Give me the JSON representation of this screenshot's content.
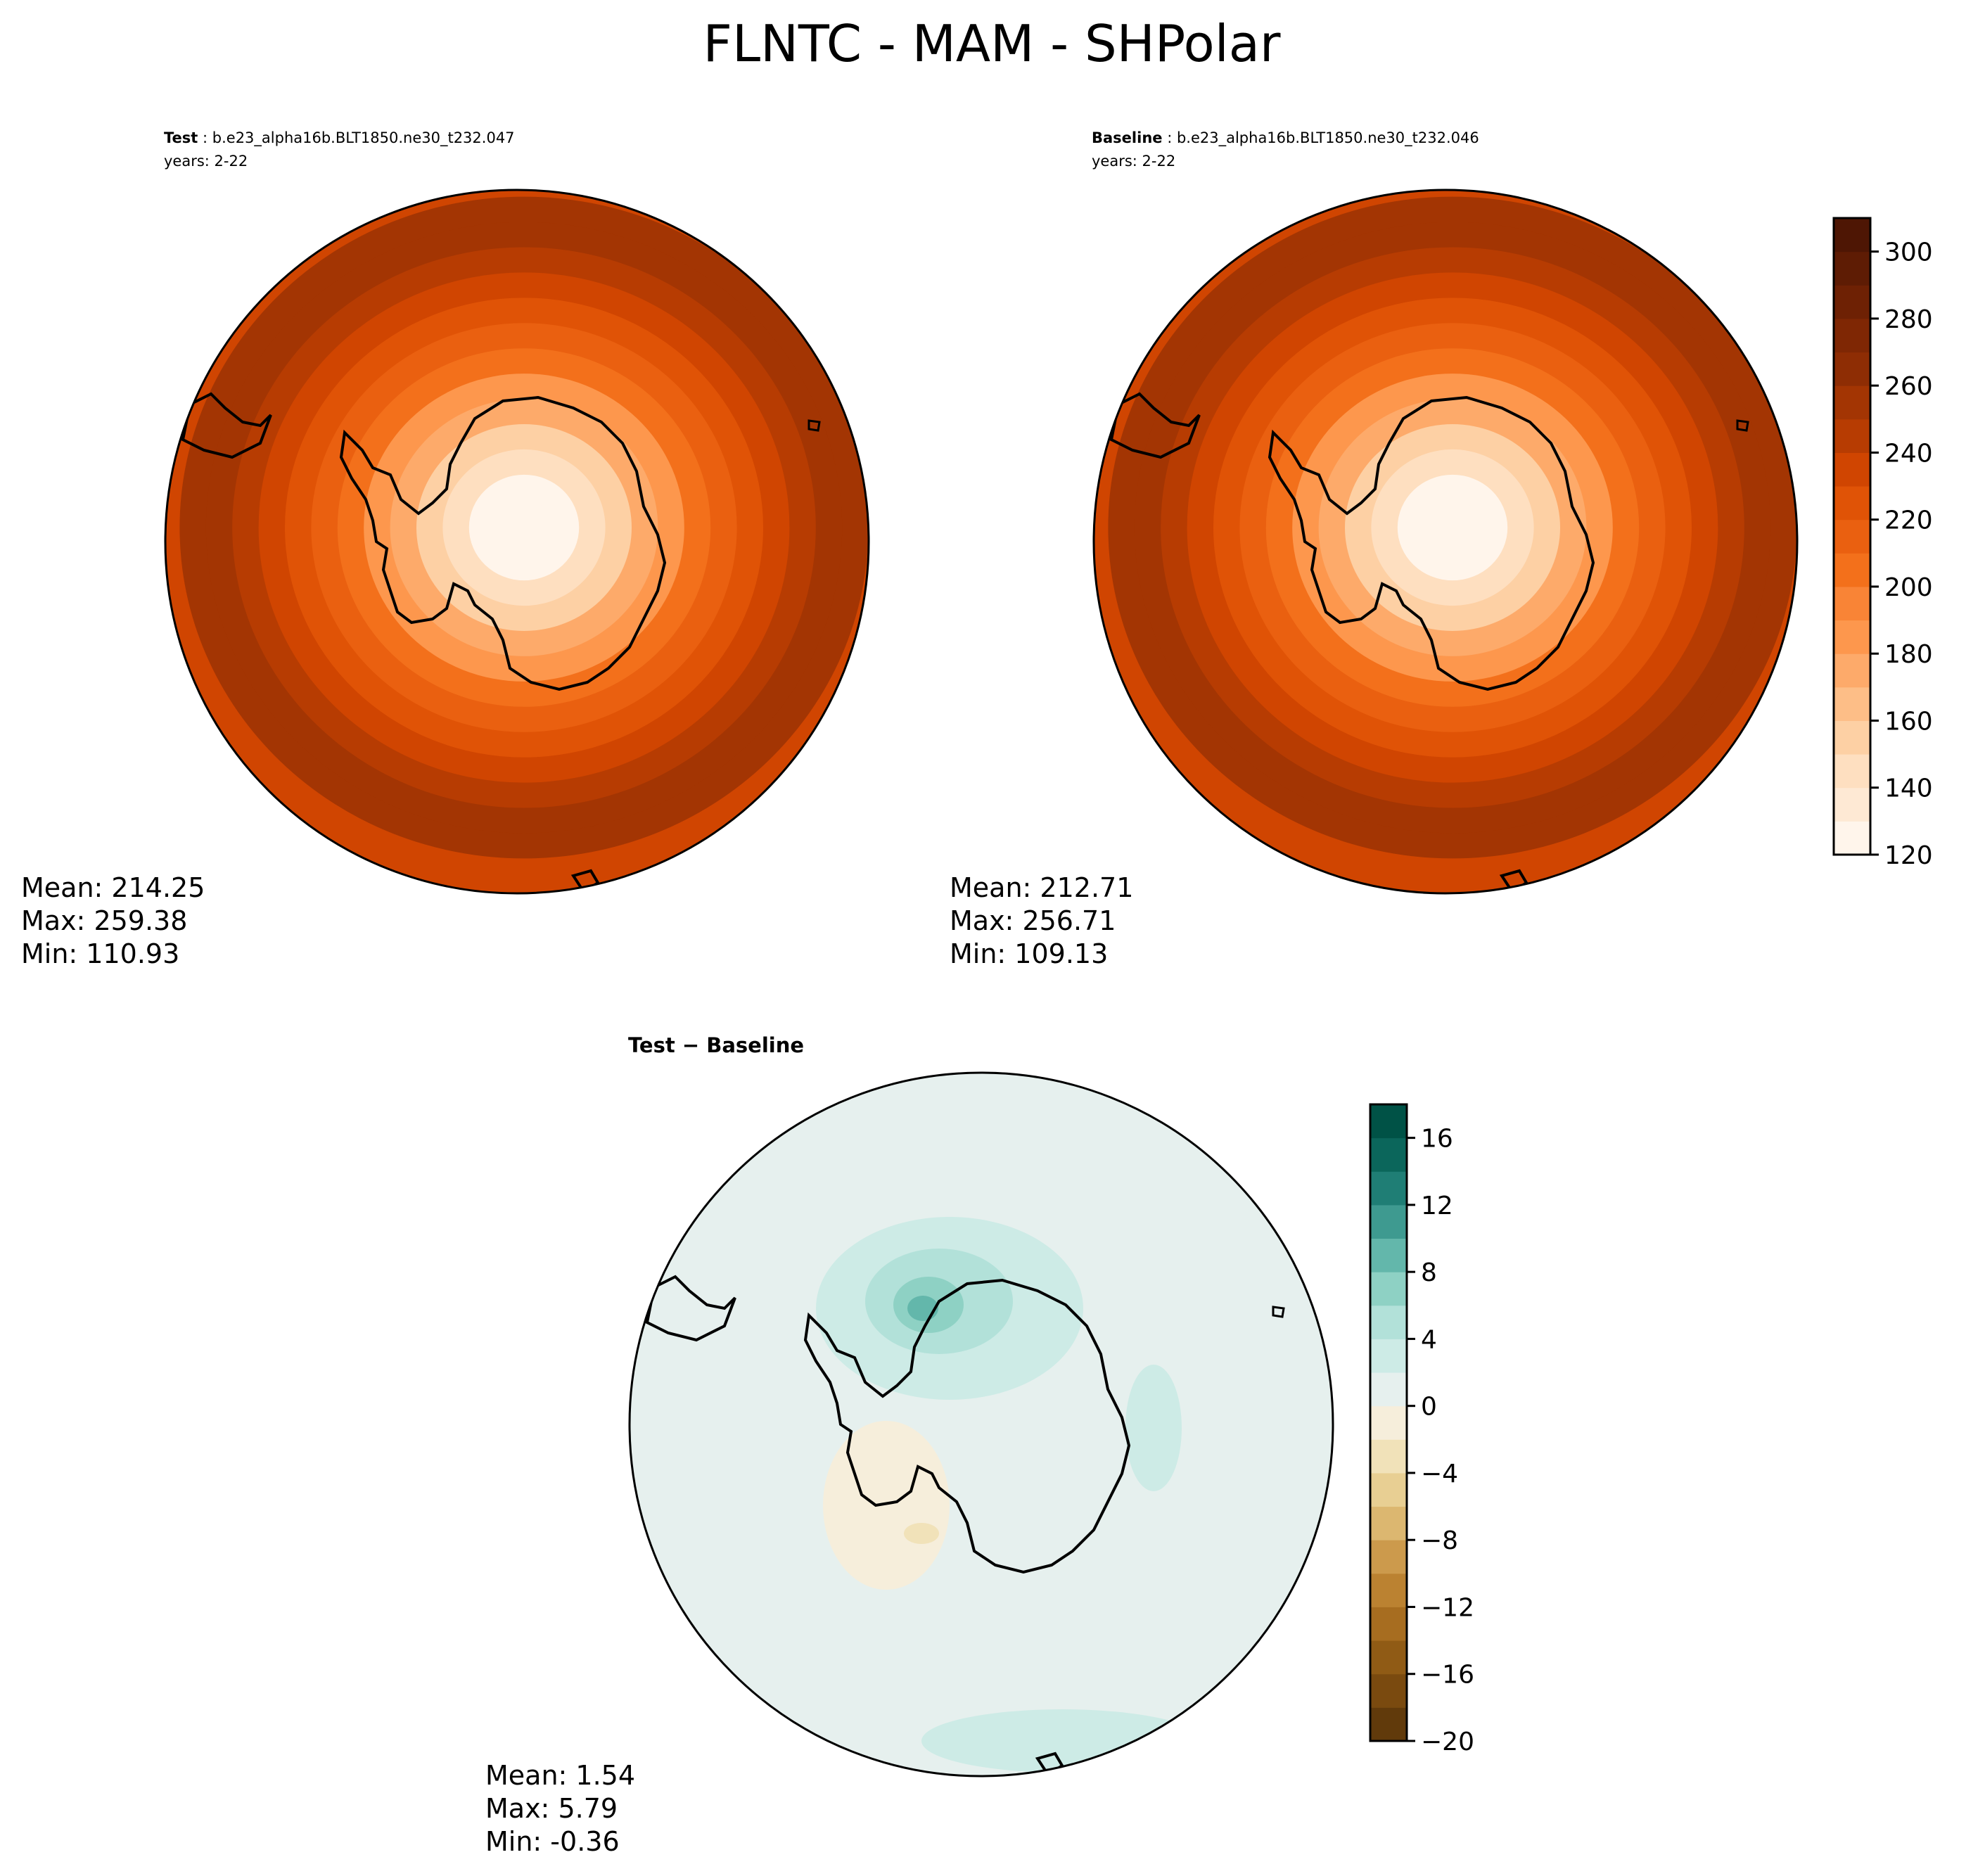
{
  "suptitle": "FLNTC - MAM - SHPolar",
  "panels": {
    "test": {
      "label": "Test",
      "case": "b.e23_alpha16b.BLT1850.ne30_t232.047",
      "years": "years: 2-22",
      "mean": "Mean: 214.25",
      "max": "Max: 259.38",
      "min": "Min: 110.93"
    },
    "baseline": {
      "label": "Baseline",
      "case": "b.e23_alpha16b.BLT1850.ne30_t232.046",
      "years": "years: 2-22",
      "mean": "Mean: 212.71",
      "max": "Max: 256.71",
      "min": "Min: 109.13"
    },
    "diff": {
      "title": "Test − Baseline",
      "mean": "Mean:  1.54",
      "max": "Max:  5.79",
      "min": "Min: -0.36"
    }
  },
  "chart_data": [
    {
      "type": "heatmap",
      "projection": "south-polar-stereographic",
      "panel": "test",
      "colormap": "Oranges",
      "color_levels": [
        120,
        130,
        140,
        150,
        160,
        170,
        180,
        190,
        200,
        210,
        220,
        230,
        240,
        250,
        260,
        270,
        280,
        290,
        300,
        310
      ],
      "contour_rings_from_pole": [
        110,
        125,
        140,
        155,
        170,
        185,
        200,
        210,
        220,
        230,
        240,
        250,
        255
      ],
      "stats": {
        "mean": 214.25,
        "max": 259.38,
        "min": 110.93
      }
    },
    {
      "type": "heatmap",
      "projection": "south-polar-stereographic",
      "panel": "baseline",
      "colormap": "Oranges",
      "color_levels": [
        120,
        130,
        140,
        150,
        160,
        170,
        180,
        190,
        200,
        210,
        220,
        230,
        240,
        250,
        260,
        270,
        280,
        290,
        300,
        310
      ],
      "contour_rings_from_pole": [
        110,
        125,
        140,
        155,
        170,
        185,
        200,
        210,
        220,
        230,
        240,
        250,
        255
      ],
      "stats": {
        "mean": 212.71,
        "max": 256.71,
        "min": 109.13
      }
    },
    {
      "type": "heatmap",
      "projection": "south-polar-stereographic",
      "panel": "diff",
      "colormap": "BrBG",
      "color_levels": [
        -20,
        -18,
        -16,
        -14,
        -12,
        -10,
        -8,
        -6,
        -4,
        -2,
        0,
        2,
        4,
        6,
        8,
        10,
        12,
        14,
        16,
        18
      ],
      "stats": {
        "mean": 1.54,
        "max": 5.79,
        "min": -0.36
      }
    }
  ],
  "colorbars": {
    "main": {
      "ticks": [
        "120",
        "140",
        "160",
        "180",
        "200",
        "220",
        "240",
        "260",
        "280",
        "300"
      ],
      "tick_values": [
        120,
        140,
        160,
        180,
        200,
        220,
        240,
        260,
        280,
        300
      ],
      "range": [
        120,
        310
      ],
      "colors": [
        "#fff5eb",
        "#fee9d4",
        "#fedfc0",
        "#fdd0a4",
        "#fdbe87",
        "#fdaa6a",
        "#fd974d",
        "#f98436",
        "#f3701b",
        "#ea6010",
        "#e05306",
        "#d04501",
        "#b73c02",
        "#a33503",
        "#8e2d04",
        "#7f2704",
        "#6e2104",
        "#5e1c04",
        "#4e1604"
      ]
    },
    "diff": {
      "ticks": [
        "−20",
        "−16",
        "−12",
        "−8",
        "−4",
        "0",
        "4",
        "8",
        "12",
        "16"
      ],
      "tick_values": [
        -20,
        -16,
        -12,
        -8,
        -4,
        0,
        4,
        8,
        12,
        16
      ],
      "range": [
        -20,
        18
      ],
      "colors": [
        "#613a0b",
        "#7a4a0f",
        "#905b15",
        "#a76d20",
        "#bb8231",
        "#cc9a4c",
        "#dcb770",
        "#e8cf93",
        "#f1e2b9",
        "#f6eedb",
        "#e6f0ee",
        "#cdebe6",
        "#b2e1d9",
        "#8ed1c4",
        "#63b7ab",
        "#3e9a90",
        "#1f7e75",
        "#0b665b",
        "#005246"
      ]
    }
  }
}
